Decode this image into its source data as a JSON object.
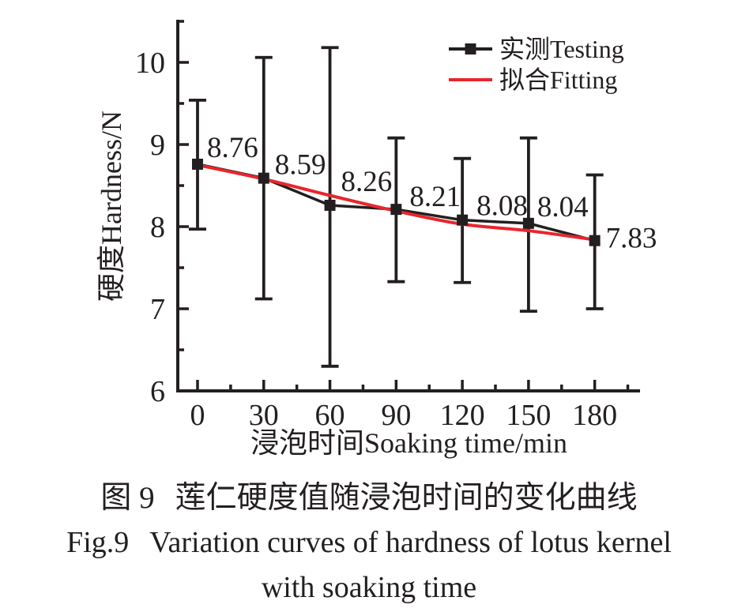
{
  "figure": {
    "background": "#ffffff",
    "text_color": "#231f20"
  },
  "chart_data": {
    "type": "line",
    "title": "",
    "x": [
      0,
      30,
      60,
      90,
      120,
      150,
      180
    ],
    "xlabel": "浸泡时间Soaking time/min",
    "ylabel": "硬度Hardness/N",
    "xlim": [
      -9,
      201
    ],
    "ylim": [
      6,
      10.52
    ],
    "grid": false,
    "legend_position": "top-right",
    "axes": {
      "x_major_ticks": [
        0,
        30,
        60,
        90,
        120,
        150,
        180
      ],
      "x_major_tick_labels": [
        "0",
        "30",
        "60",
        "90",
        "120",
        "150",
        "180"
      ],
      "x_minor_ticks": [
        15,
        45,
        75,
        105,
        135,
        165,
        195
      ],
      "y_major_ticks": [
        6,
        7,
        8,
        9,
        10
      ],
      "y_major_tick_labels": [
        "6",
        "7",
        "8",
        "9",
        "10"
      ],
      "y_minor_ticks": [
        6.5,
        7.5,
        8.5,
        9.5,
        10.5
      ]
    },
    "series": [
      {
        "name": "实测Testing",
        "type": "scatter-line-errorbar",
        "color": "#231f20",
        "marker": "square",
        "values": [
          8.76,
          8.59,
          8.26,
          8.21,
          8.08,
          8.04,
          7.83
        ],
        "point_labels": [
          "8.76",
          "8.59",
          "8.26",
          "8.21",
          "8.08",
          "8.04",
          "7.83"
        ],
        "error_upper": [
          9.54,
          10.06,
          10.18,
          9.08,
          8.83,
          9.08,
          8.63
        ],
        "error_lower": [
          7.97,
          7.12,
          6.3,
          7.33,
          7.32,
          6.97,
          7.0
        ]
      },
      {
        "name": "拟合Fitting",
        "type": "line",
        "color": "#e8262d",
        "values": [
          8.75,
          8.58,
          8.38,
          8.19,
          8.03,
          7.95,
          7.84
        ]
      }
    ]
  },
  "caption": {
    "cn_prefix": "图 9",
    "cn_title": "莲仁硬度值随浸泡时间的变化曲线",
    "en_prefix": "Fig.9",
    "en_title": "Variation curves of hardness of lotus kernel",
    "en_title2": "with soaking time"
  }
}
